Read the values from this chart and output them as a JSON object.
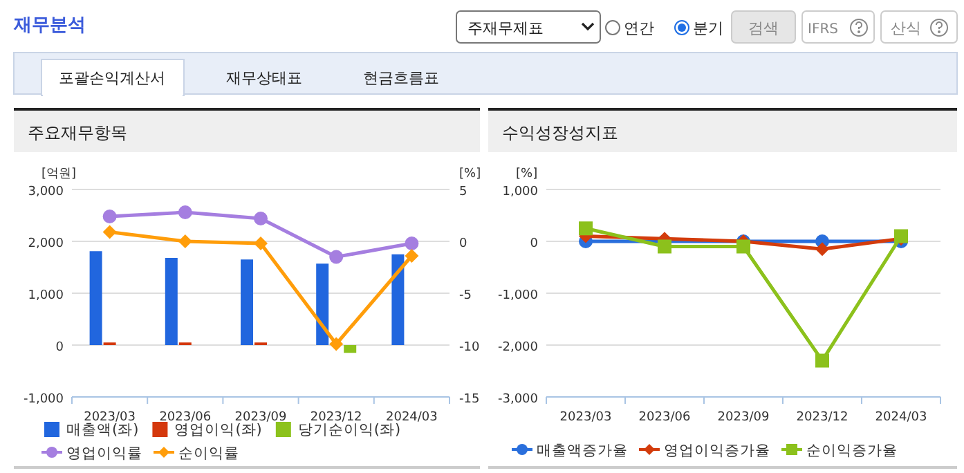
{
  "chart_data": [
    {
      "type": "other",
      "title": "재무분석",
      "annotations": [
        "주재무제표",
        "연간",
        "분기",
        "검색",
        "IFRS",
        "산식",
        "포괄손익계산서",
        "재무상태표",
        "현금흐름표"
      ]
    },
    {
      "type": "bar",
      "title": "주요재무항목",
      "categories": [
        "2023/03",
        "2023/06",
        "2023/09",
        "2023/12",
        "2024/03"
      ],
      "ylabel": "[억원]",
      "y2label": "[%]",
      "ylim": [
        -1000,
        3000
      ],
      "yticks": [
        {
          "value": -1000,
          "label": "-1,000"
        },
        0,
        {
          "value": 1000,
          "label": "1,000"
        },
        {
          "value": 2000,
          "label": "2,000"
        },
        {
          "value": 3000,
          "label": "3,000"
        }
      ],
      "y2lim": [
        -15,
        5
      ],
      "y2ticks": [
        -15,
        -10,
        -5,
        0,
        5
      ],
      "grid": "y",
      "legend": "bottom",
      "series": [
        {
          "name": "매출액(좌)",
          "color": "#2166de",
          "values": [
            1810,
            1680,
            1650,
            1570,
            1750
          ]
        },
        {
          "name": "영업이익(좌)",
          "color": "#d4380d",
          "values": [
            50,
            50,
            50,
            0,
            0
          ]
        },
        {
          "name": "당기순이익(좌)",
          "color": "#8cc21c",
          "values": [
            0,
            0,
            0,
            -150,
            0
          ]
        },
        {
          "name": "영업이익률",
          "type": "line",
          "axis": "y2",
          "marker": "circle",
          "color": "#a57ee0",
          "values": [
            2.4,
            2.8,
            2.2,
            -1.5,
            -0.2
          ]
        },
        {
          "name": "순이익률",
          "type": "line",
          "axis": "y2",
          "marker": "diamond",
          "color": "#ff9d0a",
          "values": [
            0.9,
            0,
            -0.2,
            -9.9,
            -1.4
          ]
        }
      ]
    },
    {
      "type": "line",
      "title": "수익성장성지표",
      "categories": [
        "2023/03",
        "2023/06",
        "2023/09",
        "2023/12",
        "2024/03"
      ],
      "ylabel": "[%]",
      "ylim": [
        -3000,
        1000
      ],
      "yticks": [
        {
          "value": -3000,
          "label": "-3,000"
        },
        {
          "value": -2000,
          "label": "-2,000"
        },
        {
          "value": -1000,
          "label": "-1,000"
        },
        0,
        {
          "value": 1000,
          "label": "1,000"
        }
      ],
      "grid": "y",
      "legend": "bottom",
      "series": [
        {
          "name": "매출액증가율",
          "marker": "circle",
          "color": "#2a6fdc",
          "values": [
            0,
            0,
            0,
            0,
            0
          ]
        },
        {
          "name": "영업이익증가율",
          "marker": "diamond",
          "color": "#d33c0c",
          "values": [
            100,
            50,
            0,
            -150,
            50
          ]
        },
        {
          "name": "순이익증가율",
          "marker": "square",
          "color": "#8cc11c",
          "values": [
            250,
            -100,
            -100,
            -2300,
            100
          ]
        }
      ]
    }
  ]
}
